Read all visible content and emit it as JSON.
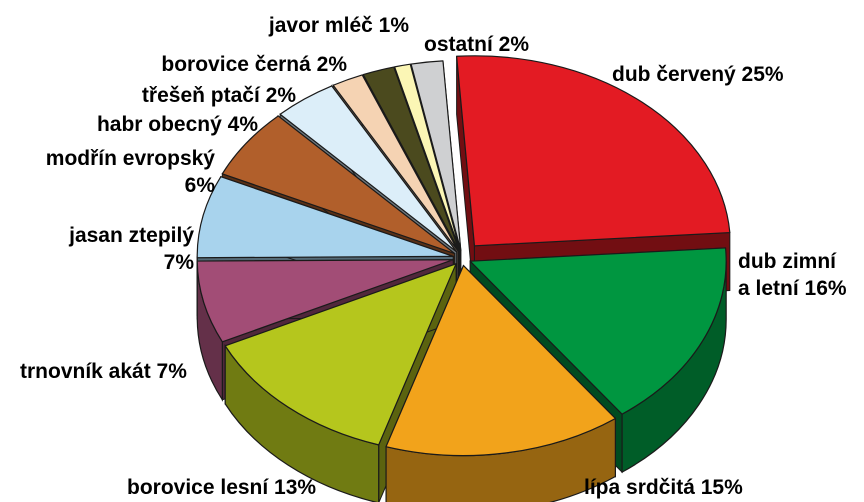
{
  "chart_data": {
    "type": "pie",
    "title": "",
    "unit": "%",
    "style": "3d-exploded",
    "slices": [
      {
        "label": "dub červený 25%",
        "value": 25,
        "color": "#e31b23"
      },
      {
        "label": "dub zimní a letní 16%",
        "lines": [
          "dub zimní",
          "a letní 16%"
        ],
        "value": 16,
        "color": "#009640"
      },
      {
        "label": "lípa srdčitá 15%",
        "value": 15,
        "color": "#f2a31b"
      },
      {
        "label": "borovice lesní 13%",
        "value": 13,
        "color": "#b5c61d"
      },
      {
        "label": "trnovník akát 7%",
        "value": 7,
        "color": "#a24d76"
      },
      {
        "label": "jasan ztepilý 7%",
        "lines": [
          "jasan ztepilý",
          "7%"
        ],
        "value": 7,
        "color": "#a8d3ed"
      },
      {
        "label": "modřín evropský 6%",
        "lines": [
          "modřín evropský",
          "6%"
        ],
        "value": 6,
        "color": "#b15f2b"
      },
      {
        "label": "habr obecný 4%",
        "value": 4,
        "color": "#dceef9"
      },
      {
        "label": "třešeň ptačí 2%",
        "value": 2,
        "color": "#f5d3b3"
      },
      {
        "label": "borovice černá 2%",
        "value": 2,
        "color": "#4b4a1e"
      },
      {
        "label": "javor mléč 1%",
        "value": 1,
        "color": "#fbf6b5"
      },
      {
        "label": "ostatní 2%",
        "value": 2,
        "color": "#cfd0d2"
      }
    ]
  }
}
